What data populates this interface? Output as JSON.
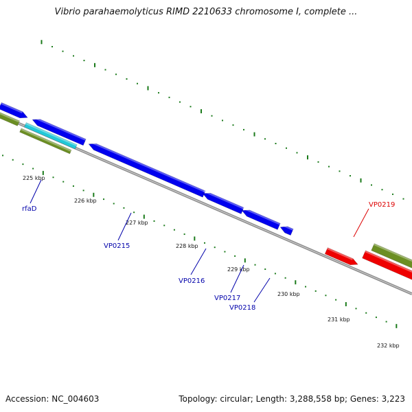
{
  "title": "Vibrio parahaemolyticus RIMD 2210633 chromosome I, complete ...",
  "footer": {
    "accession": "Accession: NC_004603",
    "summary": "Topology: circular; Length: 3,288,558 bp; Genes: 3,223"
  },
  "colors": {
    "backbone": "#8c8c8c",
    "forward_gene": "#0000ee",
    "rrna": "#22c8d8",
    "highlight_gene": "#ee0000",
    "cds_track": "#6b8e23",
    "tick": "#1a7a1a"
  },
  "scale_labels": [
    "225 kbp",
    "226 kbp",
    "227 kbp",
    "228 kbp",
    "229 kbp",
    "230 kbp",
    "231 kbp",
    "232 kbp"
  ],
  "gene_labels": [
    {
      "text": "rfaD",
      "color": "#0000aa"
    },
    {
      "text": "VP0215",
      "color": "#0000aa"
    },
    {
      "text": "VP0216",
      "color": "#0000aa"
    },
    {
      "text": "VP0217",
      "color": "#0000aa"
    },
    {
      "text": "VP0218",
      "color": "#0000aa"
    },
    {
      "text": "VP0219",
      "color": "#dd0000"
    }
  ]
}
